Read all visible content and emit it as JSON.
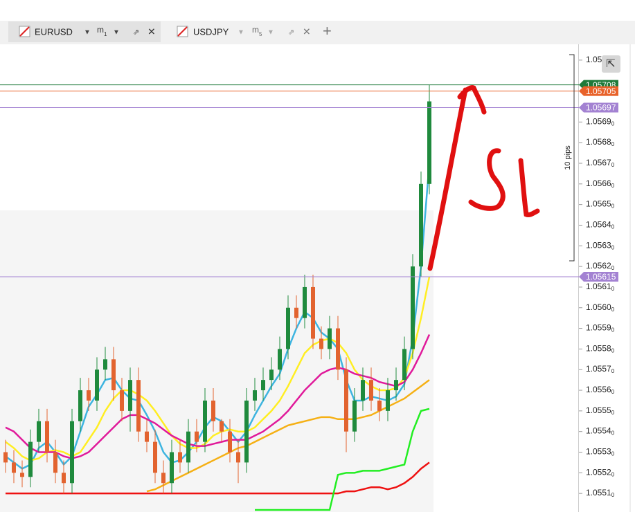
{
  "tabs": [
    {
      "symbol": "EURUSD",
      "timeframe": "m",
      "period": "1"
    },
    {
      "symbol": "USDJPY",
      "timeframe": "m",
      "period": "5"
    }
  ],
  "chart_data": {
    "type": "candlestick",
    "range_label": "10 pips",
    "ylim": [
      1.05501,
      1.05727
    ],
    "yticks": [
      {
        "value": 1.0551,
        "label": "1.05510"
      },
      {
        "value": 1.0552,
        "label": "1.05520"
      },
      {
        "value": 1.0553,
        "label": "1.05530"
      },
      {
        "value": 1.0554,
        "label": "1.05540"
      },
      {
        "value": 1.0555,
        "label": "1.05550"
      },
      {
        "value": 1.0556,
        "label": "1.05560"
      },
      {
        "value": 1.0557,
        "label": "1.05570"
      },
      {
        "value": 1.0558,
        "label": "1.05580"
      },
      {
        "value": 1.0559,
        "label": "1.05590"
      },
      {
        "value": 1.056,
        "label": "1.05600"
      },
      {
        "value": 1.0561,
        "label": "1.05610"
      },
      {
        "value": 1.0562,
        "label": "1.05620"
      },
      {
        "value": 1.0563,
        "label": "1.05630"
      },
      {
        "value": 1.0564,
        "label": "1.05640"
      },
      {
        "value": 1.0565,
        "label": "1.05650"
      },
      {
        "value": 1.0566,
        "label": "1.05660"
      },
      {
        "value": 1.0567,
        "label": "1.05670"
      },
      {
        "value": 1.0568,
        "label": "1.05680"
      },
      {
        "value": 1.0569,
        "label": "1.05690"
      },
      {
        "value": 1.0572,
        "label": "1.05"
      }
    ],
    "up_color": "#1f8a3d",
    "down_color": "#e2632f",
    "open": [
      1.0553,
      1.05525,
      1.0552,
      1.05518,
      1.05535,
      1.05545,
      1.0553,
      1.0552,
      1.05515,
      1.05545,
      1.0556,
      1.05555,
      1.0557,
      1.05575,
      1.0556,
      1.0555,
      1.05565,
      1.0554,
      1.05535,
      1.0552,
      1.05515,
      1.0553,
      1.05525,
      1.0554,
      1.05535,
      1.05555,
      1.05545,
      1.0554,
      1.0553,
      1.05525,
      1.05555,
      1.0556,
      1.05565,
      1.0557,
      1.0558,
      1.056,
      1.05595,
      1.0561,
      1.05585,
      1.0558,
      1.0559,
      1.0557,
      1.0554,
      1.05555,
      1.05565,
      1.05555,
      1.0555,
      1.0556,
      1.05565,
      1.0558,
      1.0562,
      1.0566
    ],
    "close": [
      1.05525,
      1.0552,
      1.05518,
      1.05535,
      1.05545,
      1.0553,
      1.0552,
      1.05515,
      1.05545,
      1.0556,
      1.05555,
      1.0557,
      1.05575,
      1.0556,
      1.0555,
      1.05565,
      1.0554,
      1.05535,
      1.0552,
      1.05515,
      1.0553,
      1.05525,
      1.0554,
      1.05535,
      1.05555,
      1.05545,
      1.0554,
      1.0553,
      1.05525,
      1.05555,
      1.0556,
      1.05565,
      1.0557,
      1.0558,
      1.056,
      1.05595,
      1.0561,
      1.05585,
      1.0558,
      1.0559,
      1.0557,
      1.0554,
      1.05555,
      1.05565,
      1.05555,
      1.0555,
      1.0556,
      1.05565,
      1.0558,
      1.0562,
      1.0566,
      1.057
    ],
    "high": [
      1.05536,
      1.05531,
      1.05526,
      1.05541,
      1.05551,
      1.05551,
      1.05536,
      1.05526,
      1.05551,
      1.05566,
      1.05566,
      1.05576,
      1.05581,
      1.05581,
      1.05566,
      1.05571,
      1.05571,
      1.05546,
      1.05541,
      1.05526,
      1.05536,
      1.05536,
      1.05546,
      1.05546,
      1.05561,
      1.05561,
      1.05546,
      1.05546,
      1.05536,
      1.05561,
      1.05566,
      1.05571,
      1.05576,
      1.05586,
      1.05606,
      1.05606,
      1.05616,
      1.05616,
      1.05591,
      1.05596,
      1.05596,
      1.05576,
      1.05561,
      1.05571,
      1.05571,
      1.05561,
      1.05566,
      1.05571,
      1.05586,
      1.05626,
      1.05666,
      1.05708
    ],
    "low": [
      1.0552,
      1.05515,
      1.05513,
      1.05513,
      1.0553,
      1.05525,
      1.05515,
      1.0551,
      1.0551,
      1.0554,
      1.0555,
      1.0555,
      1.05565,
      1.05555,
      1.05545,
      1.0554,
      1.05535,
      1.0553,
      1.05515,
      1.0551,
      1.0551,
      1.0552,
      1.0552,
      1.0553,
      1.0553,
      1.0554,
      1.05535,
      1.05525,
      1.05515,
      1.0552,
      1.0555,
      1.05555,
      1.0556,
      1.05565,
      1.05575,
      1.0559,
      1.0559,
      1.0558,
      1.05575,
      1.05575,
      1.05565,
      1.0553,
      1.05535,
      1.0555,
      1.0555,
      1.05545,
      1.05545,
      1.05555,
      1.0556,
      1.05575,
      1.05615,
      1.05655
    ],
    "lines": [
      {
        "color": "#3db4e0",
        "values": [
          1.05528,
          1.05525,
          1.05522,
          1.05524,
          1.05532,
          1.05535,
          1.0553,
          1.05524,
          1.05528,
          1.0554,
          1.05552,
          1.05558,
          1.05565,
          1.05566,
          1.0556,
          1.05556,
          1.05555,
          1.05548,
          1.0554,
          1.0553,
          1.05525,
          1.05526,
          1.0553,
          1.05535,
          1.05542,
          1.05547,
          1.05545,
          1.0554,
          1.05535,
          1.0554,
          1.05548,
          1.05555,
          1.05562,
          1.05568,
          1.0558,
          1.0559,
          1.05598,
          1.05595,
          1.05588,
          1.05585,
          1.0558,
          1.05565,
          1.05555,
          1.05555,
          1.05557,
          1.05556,
          1.05555,
          1.05557,
          1.05563,
          1.05585,
          1.0562,
          1.0567
        ]
      },
      {
        "color": "#ffee22",
        "values": [
          1.05535,
          1.05532,
          1.05528,
          1.05526,
          1.05527,
          1.0553,
          1.05531,
          1.0553,
          1.05528,
          1.0553,
          1.05536,
          1.05542,
          1.0555,
          1.05556,
          1.0556,
          1.0556,
          1.05558,
          1.05555,
          1.0555,
          1.05544,
          1.05538,
          1.05534,
          1.05532,
          1.05532,
          1.05534,
          1.05538,
          1.0554,
          1.05541,
          1.0554,
          1.0554,
          1.05542,
          1.05546,
          1.0555,
          1.05555,
          1.05562,
          1.0557,
          1.05578,
          1.05582,
          1.05584,
          1.05585,
          1.05583,
          1.05578,
          1.0557,
          1.05565,
          1.05562,
          1.0556,
          1.0556,
          1.05561,
          1.05566,
          1.05578,
          1.05595,
          1.05615
        ]
      },
      {
        "color": "#e0199a",
        "values": [
          1.05542,
          1.0554,
          1.05536,
          1.05532,
          1.0553,
          1.0553,
          1.0553,
          1.05528,
          1.05527,
          1.05528,
          1.0553,
          1.05534,
          1.05538,
          1.05542,
          1.05546,
          1.05548,
          1.05548,
          1.05546,
          1.05544,
          1.05541,
          1.05538,
          1.05536,
          1.05534,
          1.05533,
          1.05533,
          1.05534,
          1.05535,
          1.05536,
          1.05536,
          1.05536,
          1.05538,
          1.0554,
          1.05543,
          1.05546,
          1.0555,
          1.05555,
          1.0556,
          1.05564,
          1.05568,
          1.0557,
          1.05571,
          1.0557,
          1.05568,
          1.05567,
          1.05566,
          1.05564,
          1.05563,
          1.05562,
          1.05564,
          1.0557,
          1.05578,
          1.05587
        ]
      },
      {
        "color": "#f5b014",
        "values": [
          null,
          null,
          null,
          null,
          null,
          null,
          null,
          null,
          null,
          null,
          null,
          null,
          null,
          null,
          null,
          null,
          null,
          1.05511,
          1.05512,
          1.05514,
          1.05516,
          1.05518,
          1.0552,
          1.05522,
          1.05524,
          1.05526,
          1.05528,
          1.0553,
          1.05532,
          1.05533,
          1.05535,
          1.05537,
          1.05539,
          1.05541,
          1.05543,
          1.05544,
          1.05545,
          1.05546,
          1.05547,
          1.05547,
          1.05546,
          1.05546,
          1.05546,
          1.05547,
          1.05548,
          1.0555,
          1.05552,
          1.05554,
          1.05556,
          1.05559,
          1.05562,
          1.05565
        ]
      },
      {
        "color": "#ee1111",
        "values": [
          1.0551,
          1.0551,
          1.0551,
          1.0551,
          1.0551,
          1.0551,
          1.0551,
          1.0551,
          1.0551,
          1.0551,
          1.0551,
          1.0551,
          1.0551,
          1.0551,
          1.0551,
          1.0551,
          1.0551,
          1.0551,
          1.0551,
          1.0551,
          1.0551,
          1.0551,
          1.0551,
          1.0551,
          1.0551,
          1.0551,
          1.0551,
          1.0551,
          1.0551,
          1.0551,
          1.0551,
          1.0551,
          1.0551,
          1.0551,
          1.0551,
          1.0551,
          1.0551,
          1.0551,
          1.0551,
          1.0551,
          1.0551,
          1.05511,
          1.05511,
          1.05512,
          1.05513,
          1.05513,
          1.05512,
          1.05513,
          1.05515,
          1.05518,
          1.05522,
          1.05525
        ]
      },
      {
        "color": "#22ee22",
        "values": [
          null,
          null,
          null,
          null,
          null,
          null,
          null,
          null,
          null,
          null,
          null,
          null,
          null,
          null,
          null,
          null,
          null,
          null,
          null,
          null,
          null,
          null,
          null,
          null,
          null,
          null,
          null,
          null,
          null,
          null,
          1.05502,
          1.05502,
          1.05502,
          1.05502,
          1.05502,
          1.05502,
          1.05502,
          1.05502,
          1.05502,
          1.05502,
          1.05519,
          1.0552,
          1.0552,
          1.05521,
          1.05521,
          1.05521,
          1.05522,
          1.05523,
          1.05524,
          1.0554,
          1.0555,
          1.05551
        ]
      }
    ],
    "price_tags": [
      {
        "value": 1.05708,
        "label": "1.05708",
        "color": "#1e7a3a"
      },
      {
        "value": 1.05705,
        "label": "1.05705",
        "color": "#e8622a"
      },
      {
        "value": 1.05697,
        "label": "1.05697",
        "color": "#a382d2"
      },
      {
        "value": 1.05615,
        "label": "1.05615",
        "color": "#a382d2"
      }
    ]
  }
}
